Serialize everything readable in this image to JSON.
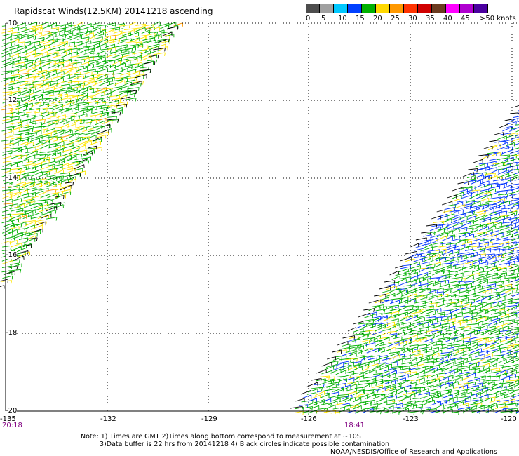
{
  "title": "Rapidscat Winds(12.5KM) 20141218 ascending",
  "colorbar": {
    "colors": [
      "#4d4d4d",
      "#a0a0a0",
      "#00c8ff",
      "#0040ff",
      "#00b000",
      "#ffd800",
      "#ff9900",
      "#ff3300",
      "#d00000",
      "#6b3a1f",
      "#ff00ff",
      "#b000d0",
      "#4b00a0"
    ],
    "labels": [
      "0",
      "5",
      "10",
      "15",
      "20",
      "25",
      "30",
      "35",
      "40",
      "45",
      ">50 knots"
    ]
  },
  "axes": {
    "lat_labels": [
      "-10",
      "-12",
      "-14",
      "-16",
      "-18",
      "-20"
    ],
    "lon_labels": [
      "-135",
      "-132",
      "-129",
      "-126",
      "-123",
      "-120"
    ],
    "lat_range": [
      -20,
      -10
    ],
    "lon_range": [
      -135,
      -120
    ]
  },
  "pass_times": [
    "20:18",
    "18:41"
  ],
  "notes": {
    "line1": "Note: 1) Times are GMT 2)Times along bottom correspond to measurement at ~10S",
    "line2": "3)Data buffer is 22 hrs from 20141218 4) Black circles indicate possible contamination"
  },
  "credit": "NOAA/NESDIS/Office of Research and Applications",
  "swath_colors": {
    "green": "#00b000",
    "yellow": "#ffe600",
    "blue": "#0033ff",
    "black": "#000000",
    "orange": "#ff9900"
  }
}
